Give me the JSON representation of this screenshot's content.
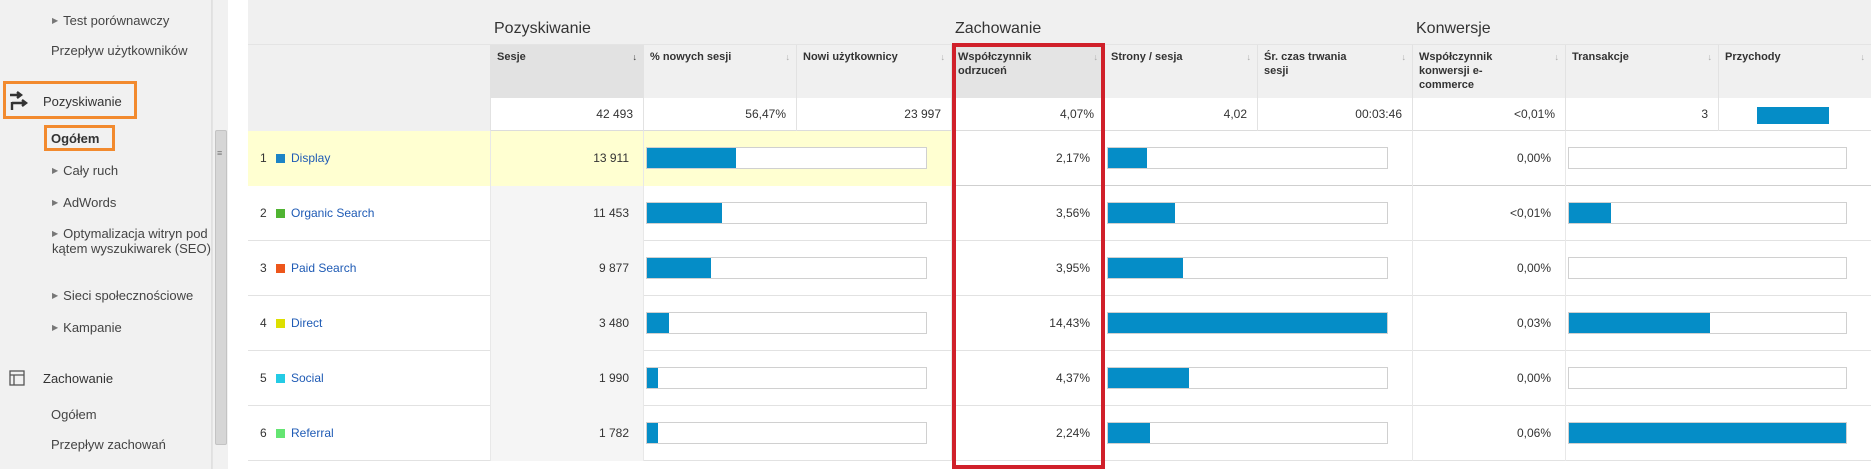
{
  "sidebar": {
    "items": {
      "test_porownawczy": "Test porównawczy",
      "przeplyw_uzytkownikow": "Przepływ użytkowników",
      "pozyskiwanie": "Pozyskiwanie",
      "ogolem": "Ogółem",
      "caly_ruch": "Cały ruch",
      "adwords": "AdWords",
      "seo": "Optymalizacja witryn pod kątem wyszukiwarek (SEO)",
      "sieci": "Sieci społecznościowe",
      "kampanie": "Kampanie",
      "zachowanie": "Zachowanie",
      "zachowanie_ogolem": "Ogółem",
      "przeplyw_zachowan": "Przepływ zachowań"
    },
    "icons": [
      "acquisition-icon",
      "behavior-icon"
    ],
    "highlight_color": "#f28a2e"
  },
  "groups": {
    "pozyskiwanie": "Pozyskiwanie",
    "zachowanie": "Zachowanie",
    "konwersje": "Konwersje"
  },
  "columns": {
    "sesje": "Sesje",
    "nowych_sesji": "% nowych sesji",
    "nowi": "Nowi użytkownicy",
    "wspolczynnik_odrzucen": "Współczynnik odrzuceń",
    "strony_sesja": "Strony / sesja",
    "czas_trwania": "Śr. czas trwania sesji",
    "konwersji": "Współczynnik konwersji e-commerce",
    "transakcje": "Transakcje",
    "przychody": "Przychody"
  },
  "totals": {
    "sesje": "42 493",
    "nowych_sesji": "56,47%",
    "nowi": "23 997",
    "odrzucen": "4,07%",
    "strony": "4,02",
    "czas": "00:03:46",
    "konwersji": "<0,01%",
    "transakcje": "3"
  },
  "rows": [
    {
      "rank": "1",
      "channel": "Display",
      "color": "#1c84c6",
      "sesje": "13 911",
      "new_pct": 0.32,
      "bounce": "2,17%",
      "pages": 0.14,
      "conv": "0,00%",
      "trans": 0.0
    },
    {
      "rank": "2",
      "channel": "Organic Search",
      "color": "#50b432",
      "sesje": "11 453",
      "new_pct": 0.27,
      "bounce": "3,56%",
      "pages": 0.24,
      "conv": "<0,01%",
      "trans": 0.15
    },
    {
      "rank": "3",
      "channel": "Paid Search",
      "color": "#ed561b",
      "sesje": "9 877",
      "new_pct": 0.23,
      "bounce": "3,95%",
      "pages": 0.27,
      "conv": "0,00%",
      "trans": 0.0
    },
    {
      "rank": "4",
      "channel": "Direct",
      "color": "#dddf00",
      "sesje": "3 480",
      "new_pct": 0.08,
      "bounce": "14,43%",
      "pages": 1.0,
      "conv": "0,03%",
      "trans": 0.51
    },
    {
      "rank": "5",
      "channel": "Social",
      "color": "#24cbe5",
      "sesje": "1 990",
      "new_pct": 0.04,
      "bounce": "4,37%",
      "pages": 0.29,
      "conv": "0,00%",
      "trans": 0.0
    },
    {
      "rank": "6",
      "channel": "Referral",
      "color": "#64e572",
      "sesje": "1 782",
      "new_pct": 0.04,
      "bounce": "2,24%",
      "pages": 0.15,
      "conv": "0,06%",
      "trans": 1.0
    }
  ],
  "colors": {
    "bar": "#058dc7",
    "highlight_red": "#d0202a",
    "highlight_row": "#ffffd1"
  },
  "totals_revenue_fill": 1.0
}
